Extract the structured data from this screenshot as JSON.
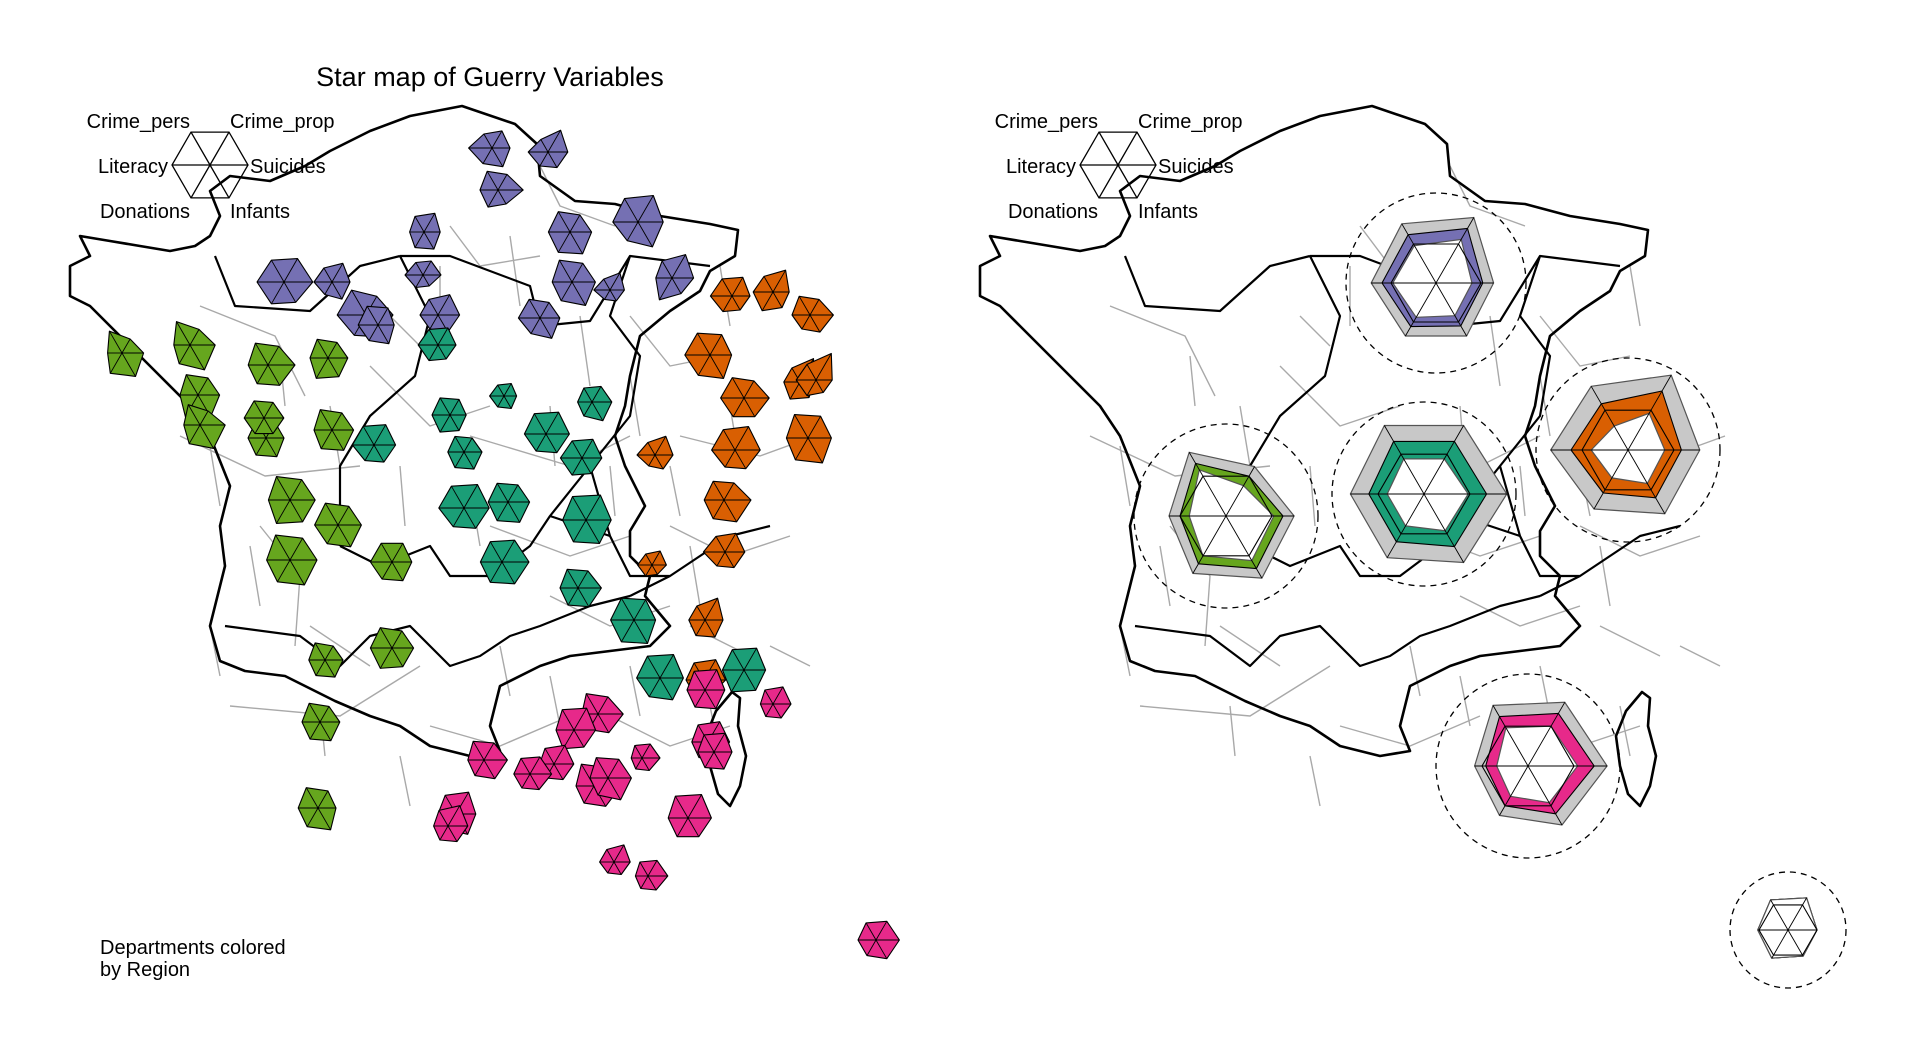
{
  "title": "Star map of Guerry Variables",
  "variables": [
    "Crime_pers",
    "Crime_prop",
    "Suicides",
    "Infants",
    "Donations",
    "Literacy"
  ],
  "note": "Departments colored\nby Region",
  "region_colors": {
    "N": "#7570b3",
    "E": "#d95f02",
    "W": "#66a61e",
    "C": "#1b9e77",
    "S": "#e7298a",
    "Corsica": "#e6ab02"
  },
  "department_stars": [
    {
      "region": "N",
      "values": [
        0.45,
        0.55,
        0.5,
        0.6,
        0.5,
        0.65
      ]
    },
    {
      "region": "N",
      "values": [
        0.4,
        0.7,
        0.55,
        0.5,
        0.45,
        0.55
      ]
    },
    {
      "region": "N",
      "values": [
        0.6,
        0.5,
        0.7,
        0.45,
        0.55,
        0.5
      ]
    },
    {
      "region": "N",
      "values": [
        0.75,
        0.85,
        0.7,
        0.8,
        0.6,
        0.7
      ]
    },
    {
      "region": "N",
      "values": [
        0.5,
        0.6,
        0.45,
        0.55,
        0.5,
        0.4
      ]
    },
    {
      "region": "N",
      "values": [
        0.65,
        0.55,
        0.6,
        0.7,
        0.65,
        0.6
      ]
    },
    {
      "region": "N",
      "values": [
        0.4,
        0.45,
        0.5,
        0.35,
        0.4,
        0.5
      ]
    },
    {
      "region": "N",
      "values": [
        0.7,
        0.6,
        0.65,
        0.75,
        0.6,
        0.55
      ]
    },
    {
      "region": "N",
      "values": [
        0.55,
        0.75,
        0.6,
        0.5,
        0.7,
        0.45
      ]
    },
    {
      "region": "N",
      "values": [
        0.35,
        0.55,
        0.4,
        0.35,
        0.3,
        0.45
      ]
    },
    {
      "region": "N",
      "values": [
        0.6,
        0.5,
        0.55,
        0.65,
        0.5,
        0.6
      ]
    },
    {
      "region": "N",
      "values": [
        0.8,
        0.6,
        0.75,
        0.7,
        0.65,
        0.8
      ]
    },
    {
      "region": "N",
      "values": [
        0.5,
        0.65,
        0.6,
        0.55,
        0.45,
        0.5
      ]
    },
    {
      "region": "N",
      "values": [
        0.7,
        0.75,
        0.8,
        0.65,
        0.7,
        0.75
      ]
    },
    {
      "region": "N",
      "values": [
        0.45,
        0.6,
        0.5,
        0.55,
        0.4,
        0.5
      ]
    },
    {
      "region": "N",
      "values": [
        0.6,
        0.55,
        0.45,
        0.6,
        0.5,
        0.55
      ]
    },
    {
      "region": "E",
      "values": [
        0.55,
        0.6,
        0.5,
        0.45,
        0.5,
        0.6
      ]
    },
    {
      "region": "E",
      "values": [
        0.5,
        0.7,
        0.45,
        0.5,
        0.6,
        0.55
      ]
    },
    {
      "region": "E",
      "values": [
        0.6,
        0.5,
        0.65,
        0.55,
        0.45,
        0.5
      ]
    },
    {
      "region": "E",
      "values": [
        0.7,
        0.65,
        0.6,
        0.75,
        0.65,
        0.7
      ]
    },
    {
      "region": "E",
      "values": [
        0.45,
        0.75,
        0.4,
        0.5,
        0.55,
        0.45
      ]
    },
    {
      "region": "E",
      "values": [
        0.65,
        0.55,
        0.7,
        0.6,
        0.6,
        0.65
      ]
    },
    {
      "region": "E",
      "values": [
        0.5,
        0.85,
        0.45,
        0.4,
        0.5,
        0.55
      ]
    },
    {
      "region": "E",
      "values": [
        0.75,
        0.7,
        0.65,
        0.8,
        0.7,
        0.6
      ]
    },
    {
      "region": "E",
      "values": [
        0.4,
        0.6,
        0.5,
        0.45,
        0.35,
        0.5
      ]
    },
    {
      "region": "E",
      "values": [
        0.65,
        0.75,
        0.7,
        0.6,
        0.55,
        0.65
      ]
    },
    {
      "region": "E",
      "values": [
        0.6,
        0.55,
        0.75,
        0.7,
        0.6,
        0.55
      ]
    },
    {
      "region": "E",
      "values": [
        0.35,
        0.45,
        0.4,
        0.3,
        0.35,
        0.4
      ]
    },
    {
      "region": "E",
      "values": [
        0.5,
        0.6,
        0.55,
        0.5,
        0.45,
        0.6
      ]
    },
    {
      "region": "E",
      "values": [
        0.45,
        0.7,
        0.5,
        0.55,
        0.5,
        0.45
      ]
    },
    {
      "region": "E",
      "values": [
        0.55,
        0.65,
        0.6,
        0.45,
        0.5,
        0.5
      ]
    },
    {
      "region": "W",
      "values": [
        0.7,
        0.45,
        0.6,
        0.75,
        0.65,
        0.4
      ]
    },
    {
      "region": "W",
      "values": [
        0.75,
        0.5,
        0.7,
        0.8,
        0.6,
        0.45
      ]
    },
    {
      "region": "W",
      "values": [
        0.65,
        0.55,
        0.6,
        0.7,
        0.7,
        0.5
      ]
    },
    {
      "region": "W",
      "values": [
        0.7,
        0.6,
        0.75,
        0.65,
        0.6,
        0.55
      ]
    },
    {
      "region": "W",
      "values": [
        0.6,
        0.5,
        0.55,
        0.6,
        0.65,
        0.5
      ]
    },
    {
      "region": "W",
      "values": [
        0.65,
        0.45,
        0.7,
        0.75,
        0.6,
        0.45
      ]
    },
    {
      "region": "W",
      "values": [
        0.55,
        0.5,
        0.5,
        0.6,
        0.55,
        0.5
      ]
    },
    {
      "region": "W",
      "values": [
        0.75,
        0.65,
        0.7,
        0.7,
        0.75,
        0.6
      ]
    },
    {
      "region": "W",
      "values": [
        0.7,
        0.6,
        0.65,
        0.7,
        0.6,
        0.65
      ]
    },
    {
      "region": "W",
      "values": [
        0.55,
        0.5,
        0.55,
        0.5,
        0.5,
        0.55
      ]
    },
    {
      "region": "W",
      "values": [
        0.65,
        0.55,
        0.6,
        0.65,
        0.6,
        0.5
      ]
    },
    {
      "region": "W",
      "values": [
        0.8,
        0.7,
        0.75,
        0.8,
        0.7,
        0.65
      ]
    },
    {
      "region": "W",
      "values": [
        0.6,
        0.6,
        0.55,
        0.6,
        0.55,
        0.6
      ]
    },
    {
      "region": "W",
      "values": [
        0.55,
        0.45,
        0.5,
        0.55,
        0.5,
        0.45
      ]
    },
    {
      "region": "W",
      "values": [
        0.65,
        0.55,
        0.6,
        0.6,
        0.65,
        0.6
      ]
    },
    {
      "region": "W",
      "values": [
        0.6,
        0.5,
        0.55,
        0.6,
        0.55,
        0.5
      ]
    },
    {
      "region": "W",
      "values": [
        0.65,
        0.55,
        0.5,
        0.7,
        0.6,
        0.55
      ]
    },
    {
      "region": "C",
      "values": [
        0.5,
        0.55,
        0.5,
        0.45,
        0.5,
        0.55
      ]
    },
    {
      "region": "C",
      "values": [
        0.35,
        0.4,
        0.35,
        0.4,
        0.35,
        0.4
      ]
    },
    {
      "region": "C",
      "values": [
        0.55,
        0.5,
        0.45,
        0.5,
        0.55,
        0.5
      ]
    },
    {
      "region": "C",
      "values": [
        0.6,
        0.65,
        0.6,
        0.55,
        0.5,
        0.6
      ]
    },
    {
      "region": "C",
      "values": [
        0.45,
        0.5,
        0.55,
        0.6,
        0.45,
        0.4
      ]
    },
    {
      "region": "C",
      "values": [
        0.5,
        0.45,
        0.5,
        0.55,
        0.5,
        0.45
      ]
    },
    {
      "region": "C",
      "values": [
        0.65,
        0.7,
        0.65,
        0.6,
        0.55,
        0.6
      ]
    },
    {
      "region": "C",
      "values": [
        0.6,
        0.55,
        0.6,
        0.65,
        0.6,
        0.55
      ]
    },
    {
      "region": "C",
      "values": [
        0.55,
        0.6,
        0.55,
        0.5,
        0.55,
        0.6
      ]
    },
    {
      "region": "C",
      "values": [
        0.7,
        0.75,
        0.7,
        0.65,
        0.6,
        0.7
      ]
    },
    {
      "region": "C",
      "values": [
        0.75,
        0.8,
        0.7,
        0.75,
        0.7,
        0.65
      ]
    },
    {
      "region": "C",
      "values": [
        0.65,
        0.7,
        0.75,
        0.7,
        0.65,
        0.6
      ]
    },
    {
      "region": "C",
      "values": [
        0.6,
        0.55,
        0.65,
        0.6,
        0.55,
        0.5
      ]
    },
    {
      "region": "C",
      "values": [
        0.7,
        0.65,
        0.6,
        0.75,
        0.7,
        0.65
      ]
    },
    {
      "region": "C",
      "values": [
        0.65,
        0.7,
        0.6,
        0.65,
        0.7,
        0.6
      ]
    },
    {
      "region": "C",
      "values": [
        0.7,
        0.75,
        0.65,
        0.7,
        0.6,
        0.65
      ]
    },
    {
      "region": "S",
      "values": [
        0.65,
        0.55,
        0.7,
        0.6,
        0.5,
        0.45
      ]
    },
    {
      "region": "S",
      "values": [
        0.6,
        0.65,
        0.55,
        0.6,
        0.55,
        0.5
      ]
    },
    {
      "region": "S",
      "values": [
        0.45,
        0.55,
        0.5,
        0.45,
        0.4,
        0.35
      ]
    },
    {
      "region": "S",
      "values": [
        0.65,
        0.7,
        0.6,
        0.55,
        0.6,
        0.5
      ]
    },
    {
      "region": "S",
      "values": [
        0.6,
        0.55,
        0.65,
        0.6,
        0.5,
        0.45
      ]
    },
    {
      "region": "S",
      "values": [
        0.7,
        0.6,
        0.75,
        0.65,
        0.55,
        0.5
      ]
    },
    {
      "region": "S",
      "values": [
        0.5,
        0.6,
        0.55,
        0.5,
        0.45,
        0.4
      ]
    },
    {
      "region": "S",
      "values": [
        0.4,
        0.45,
        0.5,
        0.4,
        0.35,
        0.3
      ]
    },
    {
      "region": "S",
      "values": [
        0.55,
        0.65,
        0.6,
        0.55,
        0.5,
        0.45
      ]
    },
    {
      "region": "S",
      "values": [
        0.6,
        0.7,
        0.55,
        0.65,
        0.5,
        0.5
      ]
    },
    {
      "region": "S",
      "values": [
        0.5,
        0.55,
        0.6,
        0.5,
        0.45,
        0.45
      ]
    },
    {
      "region": "S",
      "values": [
        0.65,
        0.6,
        0.65,
        0.7,
        0.55,
        0.5
      ]
    },
    {
      "region": "S",
      "values": [
        0.7,
        0.75,
        0.65,
        0.6,
        0.6,
        0.55
      ]
    },
    {
      "region": "S",
      "values": [
        0.55,
        0.6,
        0.5,
        0.55,
        0.5,
        0.45
      ]
    },
    {
      "region": "S",
      "values": [
        0.4,
        0.55,
        0.45,
        0.4,
        0.35,
        0.4
      ]
    },
    {
      "region": "S",
      "values": [
        0.5,
        0.65,
        0.55,
        0.5,
        0.45,
        0.4
      ]
    },
    {
      "region": "S",
      "values": [
        0.45,
        0.5,
        0.55,
        0.45,
        0.4,
        0.35
      ]
    },
    {
      "region": "S",
      "values": [
        0.55,
        0.6,
        0.65,
        0.6,
        0.5,
        0.5
      ]
    },
    {
      "region": "S",
      "values": [
        0.6,
        0.55,
        0.6,
        0.65,
        0.55,
        0.45
      ]
    },
    {
      "region": "S",
      "values": [
        0.5,
        0.6,
        0.5,
        0.55,
        0.45,
        0.45
      ]
    },
    {
      "region": "Corsica",
      "values": [
        0.55,
        0.6,
        0.45,
        0.5,
        0.55,
        0.5
      ]
    }
  ],
  "region_stars": [
    {
      "region": "N",
      "mean": [
        0.62,
        0.7,
        0.52,
        0.55,
        0.56,
        0.6
      ],
      "lower": [
        0.48,
        0.56,
        0.4,
        0.42,
        0.44,
        0.48
      ],
      "upper": [
        0.76,
        0.84,
        0.64,
        0.68,
        0.68,
        0.72
      ]
    },
    {
      "region": "E",
      "mean": [
        0.58,
        0.74,
        0.58,
        0.6,
        0.54,
        0.62
      ],
      "lower": [
        0.3,
        0.46,
        0.4,
        0.42,
        0.35,
        0.4
      ],
      "upper": [
        0.8,
        0.94,
        0.78,
        0.8,
        0.74,
        0.84
      ]
    },
    {
      "region": "W",
      "mean": [
        0.66,
        0.5,
        0.62,
        0.66,
        0.6,
        0.5
      ],
      "lower": [
        0.58,
        0.38,
        0.52,
        0.56,
        0.5,
        0.4
      ],
      "upper": [
        0.8,
        0.62,
        0.74,
        0.78,
        0.72,
        0.62
      ]
    },
    {
      "region": "C",
      "mean": [
        0.66,
        0.66,
        0.68,
        0.66,
        0.6,
        0.6
      ],
      "lower": [
        0.44,
        0.44,
        0.48,
        0.46,
        0.4,
        0.4
      ],
      "upper": [
        0.86,
        0.86,
        0.9,
        0.86,
        0.8,
        0.8
      ]
    },
    {
      "region": "S",
      "mean": [
        0.62,
        0.66,
        0.72,
        0.6,
        0.5,
        0.46
      ],
      "lower": [
        0.48,
        0.5,
        0.54,
        0.46,
        0.38,
        0.34
      ],
      "upper": [
        0.76,
        0.8,
        0.86,
        0.74,
        0.62,
        0.58
      ]
    },
    {
      "region": "Corsica",
      "mean": [
        0.6,
        0.64,
        0.5,
        0.52,
        0.56,
        0.52
      ],
      "lower": [
        0.6,
        0.64,
        0.5,
        0.52,
        0.56,
        0.52
      ],
      "upper": [
        0.6,
        0.64,
        0.5,
        0.52,
        0.56,
        0.52
      ]
    }
  ]
}
